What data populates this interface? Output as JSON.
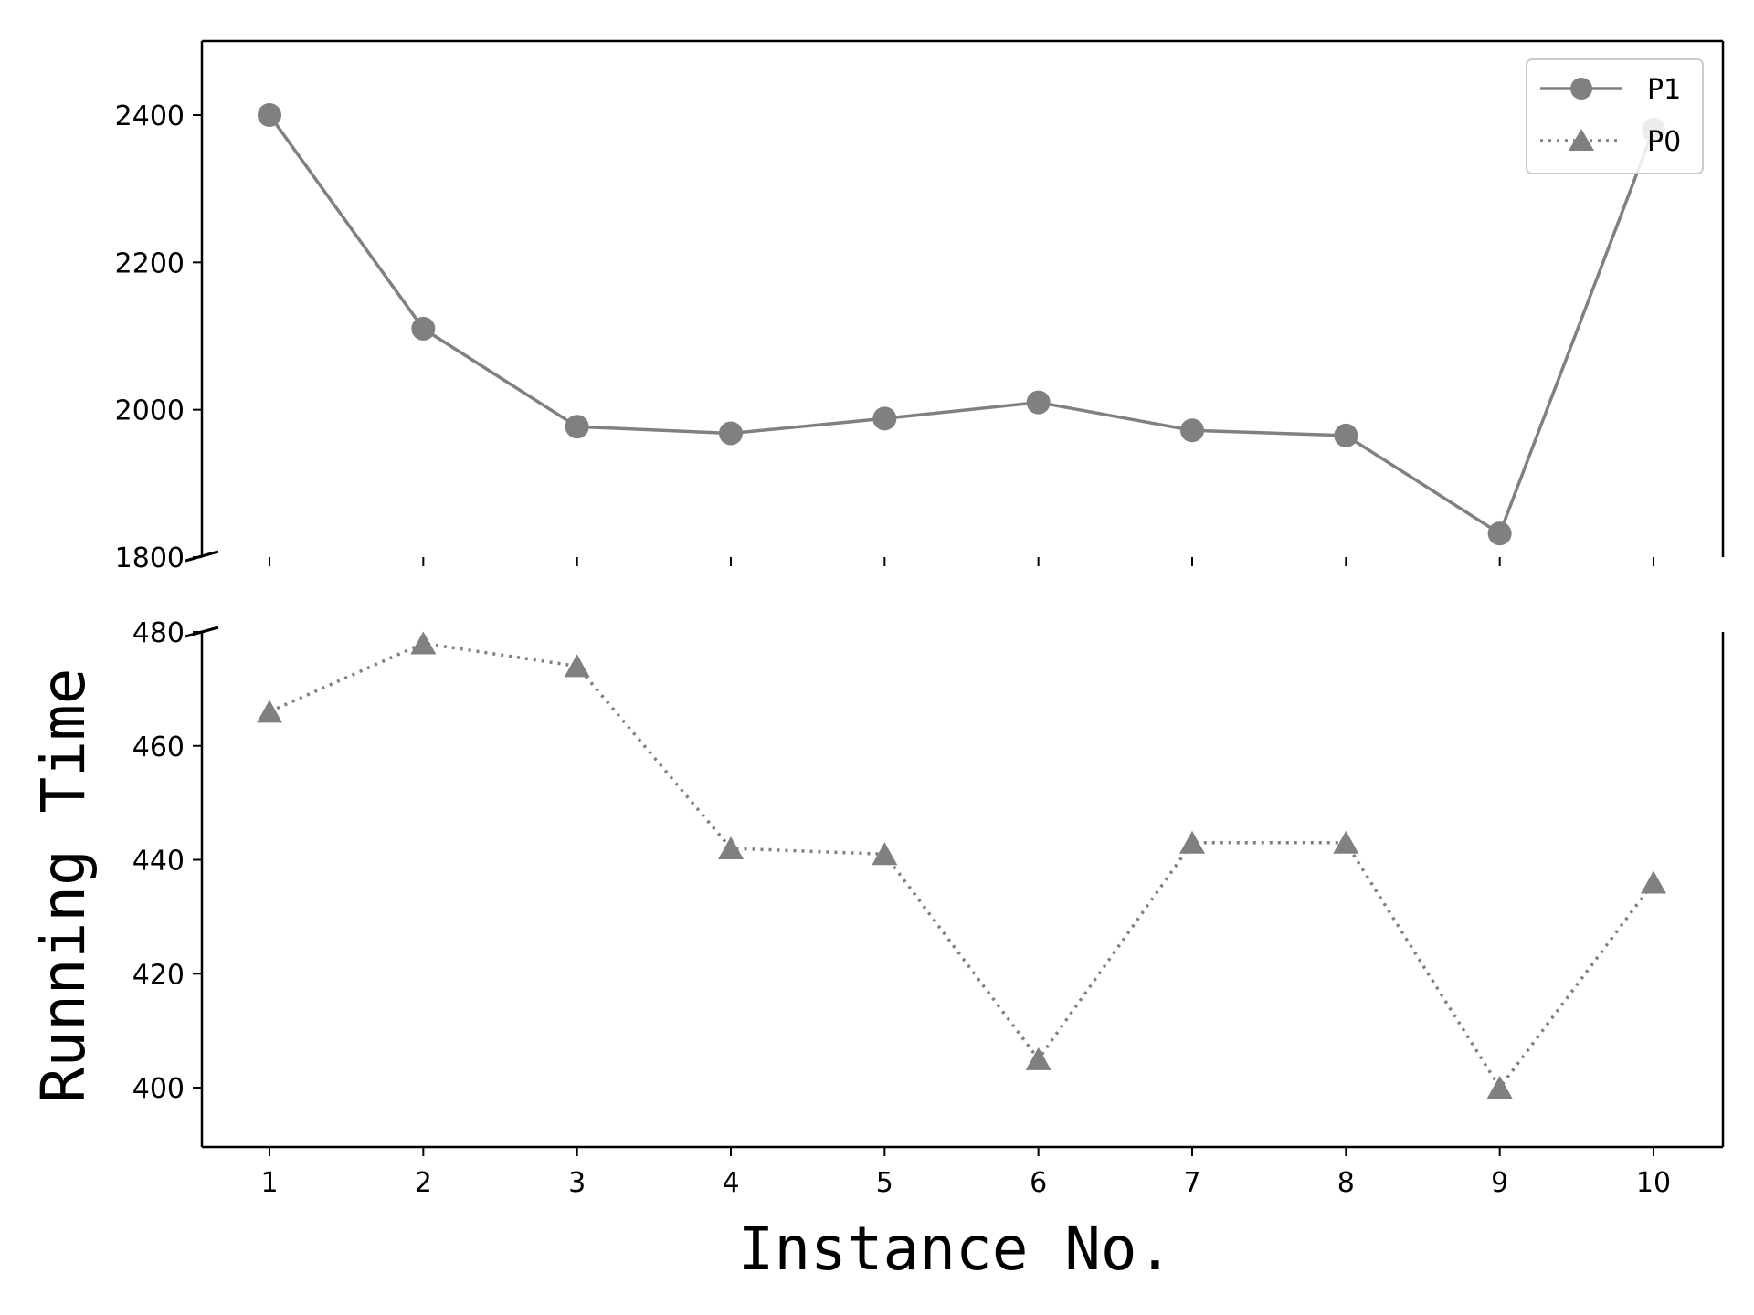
{
  "chart_data": {
    "type": "line",
    "title": "",
    "xlabel": "Instance No.",
    "ylabel": "Running Time",
    "x": [
      1,
      2,
      3,
      4,
      5,
      6,
      7,
      8,
      9,
      10
    ],
    "x_ticks": [
      "1",
      "2",
      "3",
      "4",
      "5",
      "6",
      "7",
      "8",
      "9",
      "10"
    ],
    "broken_y_axis": true,
    "legend_position": "top-right",
    "grid": false,
    "panels": [
      {
        "name": "upper",
        "ylim": [
          1800,
          2500
        ],
        "y_ticks": [
          "1800",
          "2000",
          "2200",
          "2400"
        ],
        "y_tick_values": [
          1800,
          2000,
          2200,
          2400
        ],
        "series": [
          {
            "name": "P1",
            "linestyle": "solid",
            "marker": "circle",
            "color": "#808080",
            "values": [
              2400,
              2110,
              1977,
              1968,
              1988,
              2010,
              1972,
              1965,
              1832,
              2380
            ]
          }
        ]
      },
      {
        "name": "lower",
        "ylim": [
          390,
          480
        ],
        "y_ticks": [
          "400",
          "420",
          "440",
          "460",
          "480"
        ],
        "y_tick_values": [
          400,
          420,
          440,
          460,
          480
        ],
        "series": [
          {
            "name": "P0",
            "linestyle": "dotted",
            "marker": "triangle",
            "color": "#808080",
            "values": [
              466,
              478,
              474,
              442,
              441,
              405,
              443,
              443,
              400,
              436
            ]
          }
        ]
      }
    ],
    "legend": [
      {
        "label": "P1",
        "marker": "circle",
        "linestyle": "solid"
      },
      {
        "label": "P0",
        "marker": "triangle",
        "linestyle": "dotted"
      }
    ]
  }
}
